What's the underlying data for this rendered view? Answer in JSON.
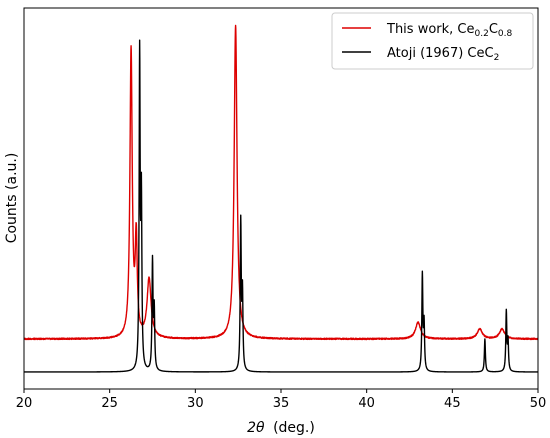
{
  "chart_data": {
    "type": "line",
    "xlabel_symbol": "2θ",
    "xlabel_unit": "(deg.)",
    "ylabel": "Counts (a.u.)",
    "xlim": [
      20,
      50
    ],
    "y_scale": "arbitrary units, no numeric tick labels",
    "x_ticks": [
      20,
      25,
      30,
      35,
      40,
      45,
      50
    ],
    "x_tick_labels": [
      "20",
      "25",
      "30",
      "35",
      "40",
      "45",
      "50"
    ],
    "grid": false,
    "legend_position": "top-right",
    "series": [
      {
        "name": "This work, Ce0.2C0.8",
        "legend_main": "This work, Ce",
        "legend_sub1": "0.2",
        "legend_mid": "C",
        "legend_sub2": "0.8",
        "color": "#dd0000",
        "baseline": 0.1,
        "peaks": [
          {
            "x": 26.25,
            "height": 0.87,
            "width": 0.08
          },
          {
            "x": 26.55,
            "height": 0.29,
            "width": 0.07
          },
          {
            "x": 27.3,
            "height": 0.18,
            "width": 0.14
          },
          {
            "x": 32.35,
            "height": 0.95,
            "width": 0.1
          },
          {
            "x": 43.0,
            "height": 0.05,
            "width": 0.18
          },
          {
            "x": 46.6,
            "height": 0.03,
            "width": 0.18
          },
          {
            "x": 47.9,
            "height": 0.03,
            "width": 0.18
          }
        ]
      },
      {
        "name": "Atoji (1967) CeC2",
        "legend_main": "Atoji (1967) CeC",
        "legend_sub": "2",
        "color": "#000000",
        "baseline": 0.0,
        "peaks": [
          {
            "x": 26.75,
            "height": 0.95,
            "width": 0.035
          },
          {
            "x": 26.85,
            "height": 0.5,
            "width": 0.035
          },
          {
            "x": 27.5,
            "height": 0.33,
            "width": 0.035
          },
          {
            "x": 27.6,
            "height": 0.18,
            "width": 0.035
          },
          {
            "x": 32.65,
            "height": 0.45,
            "width": 0.035
          },
          {
            "x": 32.75,
            "height": 0.23,
            "width": 0.035
          },
          {
            "x": 43.25,
            "height": 0.29,
            "width": 0.035
          },
          {
            "x": 43.35,
            "height": 0.14,
            "width": 0.035
          },
          {
            "x": 46.9,
            "height": 0.1,
            "width": 0.035
          },
          {
            "x": 48.15,
            "height": 0.18,
            "width": 0.035
          },
          {
            "x": 48.25,
            "height": 0.09,
            "width": 0.035
          }
        ]
      }
    ]
  }
}
